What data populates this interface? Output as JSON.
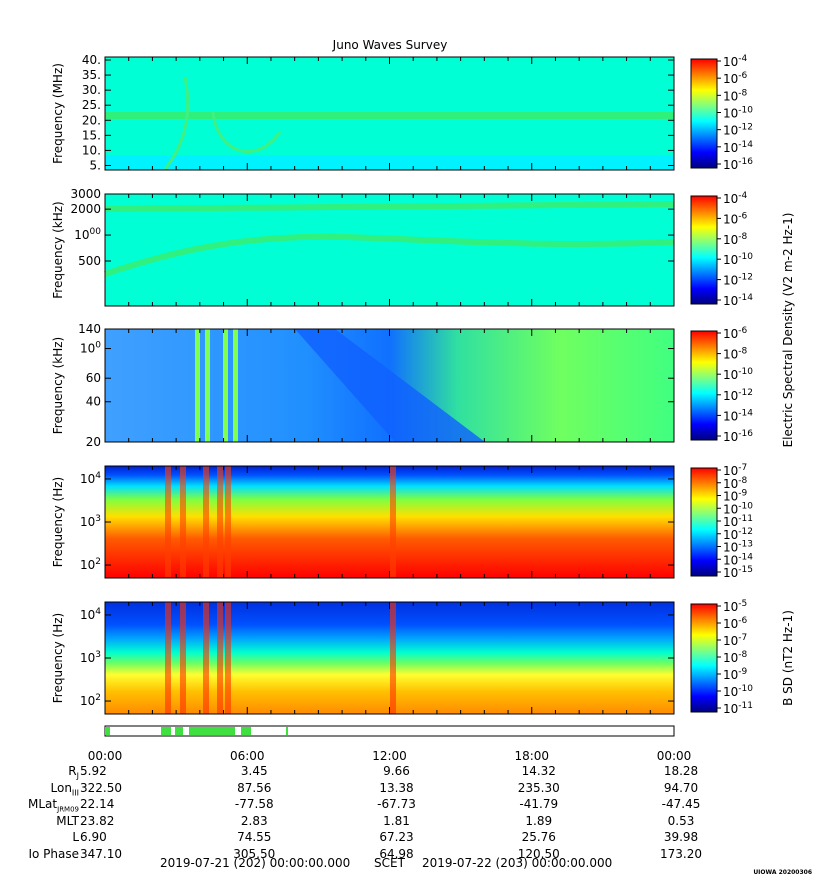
{
  "title": "Juno Waves Survey",
  "colors": {
    "background": "#00ffd5",
    "jet": [
      "#00007f",
      "#0000ff",
      "#007fff",
      "#00ffff",
      "#7fff7f",
      "#ffff00",
      "#ff7f00",
      "#ff0000"
    ]
  },
  "chart_data": [
    {
      "type": "heatmap",
      "name": "",
      "ylabel": "Frequency (MHz)",
      "yscale": "linear",
      "ylim": [
        3.5,
        41
      ],
      "yticks": [
        "40.",
        "35.",
        "30.",
        "25.",
        "20.",
        "15.",
        "10.",
        "5."
      ],
      "ytick_values": [
        40,
        35,
        30,
        25,
        20,
        15,
        10,
        5
      ],
      "colorbar_ticks": [
        "10-4",
        "10-6",
        "10-8",
        "10-10",
        "10-12",
        "10-14",
        "10-16"
      ],
      "colorbar_exponents": [
        -4,
        -6,
        -8,
        -10,
        -12,
        -14,
        -16
      ],
      "colorbar_label": ""
    },
    {
      "type": "heatmap",
      "name": "",
      "ylabel": "Frequency (kHz)",
      "yscale": "log",
      "ylim": [
        150,
        3000
      ],
      "yticks": [
        "3000",
        "2000",
        "1000",
        "500"
      ],
      "ytick_values": [
        3000,
        2000,
        1000,
        500
      ],
      "colorbar_ticks": [
        "10-4",
        "10-6",
        "10-8",
        "10-10",
        "10-12",
        "10-14"
      ],
      "colorbar_exponents": [
        -4,
        -6,
        -8,
        -10,
        -12,
        -14
      ],
      "colorbar_label": "Electric Spectral Density (V2 m-2 Hz-1)"
    },
    {
      "type": "heatmap",
      "name": "",
      "ylabel": "Frequency (kHz)",
      "yscale": "log",
      "ylim": [
        20,
        140
      ],
      "yticks": [
        "140",
        "100",
        "60",
        "40",
        "20"
      ],
      "ytick_values": [
        140,
        100,
        60,
        40,
        20
      ],
      "colorbar_ticks": [
        "10-6",
        "10-8",
        "10-10",
        "10-12",
        "10-14",
        "10-16"
      ],
      "colorbar_exponents": [
        -6,
        -8,
        -10,
        -12,
        -14,
        -16
      ],
      "colorbar_label": ""
    },
    {
      "type": "heatmap",
      "name": "",
      "ylabel": "Frequency (Hz)",
      "yscale": "log",
      "ylim": [
        50,
        20000
      ],
      "yticks": [
        "104",
        "103",
        "102"
      ],
      "ytick_values": [
        10000,
        1000,
        100
      ],
      "colorbar_ticks": [
        "10-7",
        "10-8",
        "10-9",
        "10-10",
        "10-11",
        "10-12",
        "10-13",
        "10-14",
        "10-15"
      ],
      "colorbar_exponents": [
        -7,
        -8,
        -9,
        -10,
        -11,
        -12,
        -13,
        -14,
        -15
      ],
      "colorbar_label": ""
    },
    {
      "type": "heatmap",
      "name": "",
      "ylabel": "Frequency (Hz)",
      "yscale": "log",
      "ylim": [
        50,
        20000
      ],
      "yticks": [
        "104",
        "103",
        "102"
      ],
      "ytick_values": [
        10000,
        1000,
        100
      ],
      "colorbar_ticks": [
        "10-5",
        "10-6",
        "10-7",
        "10-8",
        "10-9",
        "10-10",
        "10-11"
      ],
      "colorbar_exponents": [
        -5,
        -6,
        -7,
        -8,
        -9,
        -10,
        -11
      ],
      "colorbar_label": "B SD (nT2 Hz-1)"
    }
  ],
  "xaxis": {
    "ticks": [
      "00:00",
      "06:00",
      "12:00",
      "18:00",
      "00:00"
    ],
    "tick_hours": [
      0,
      6,
      12,
      18,
      24
    ]
  },
  "ephemeris": [
    {
      "label": "RJ",
      "values": [
        "5.92",
        "3.45",
        "9.66",
        "14.32",
        "18.28"
      ]
    },
    {
      "label": "LonIII",
      "values": [
        "322.50",
        "87.56",
        "13.38",
        "235.30",
        "94.70"
      ]
    },
    {
      "label": "MLatJRM09",
      "values": [
        "22.14",
        "-77.58",
        "-67.73",
        "-41.79",
        "-47.45"
      ]
    },
    {
      "label": "MLT",
      "values": [
        "23.82",
        "2.83",
        "1.81",
        "1.89",
        "0.53"
      ]
    },
    {
      "label": "L",
      "values": [
        "6.90",
        "74.55",
        "67.23",
        "25.76",
        "39.98"
      ]
    },
    {
      "label": "Io Phase",
      "values": [
        "347.10",
        "305.50",
        "64.98",
        "120.50",
        "173.20"
      ]
    }
  ],
  "footer": {
    "start": "2019-07-21 (202) 00:00:00.000",
    "scet": "SCET",
    "end": "2019-07-22 (203) 00:00:00.000"
  },
  "stamp": "UIOWA 20200306"
}
